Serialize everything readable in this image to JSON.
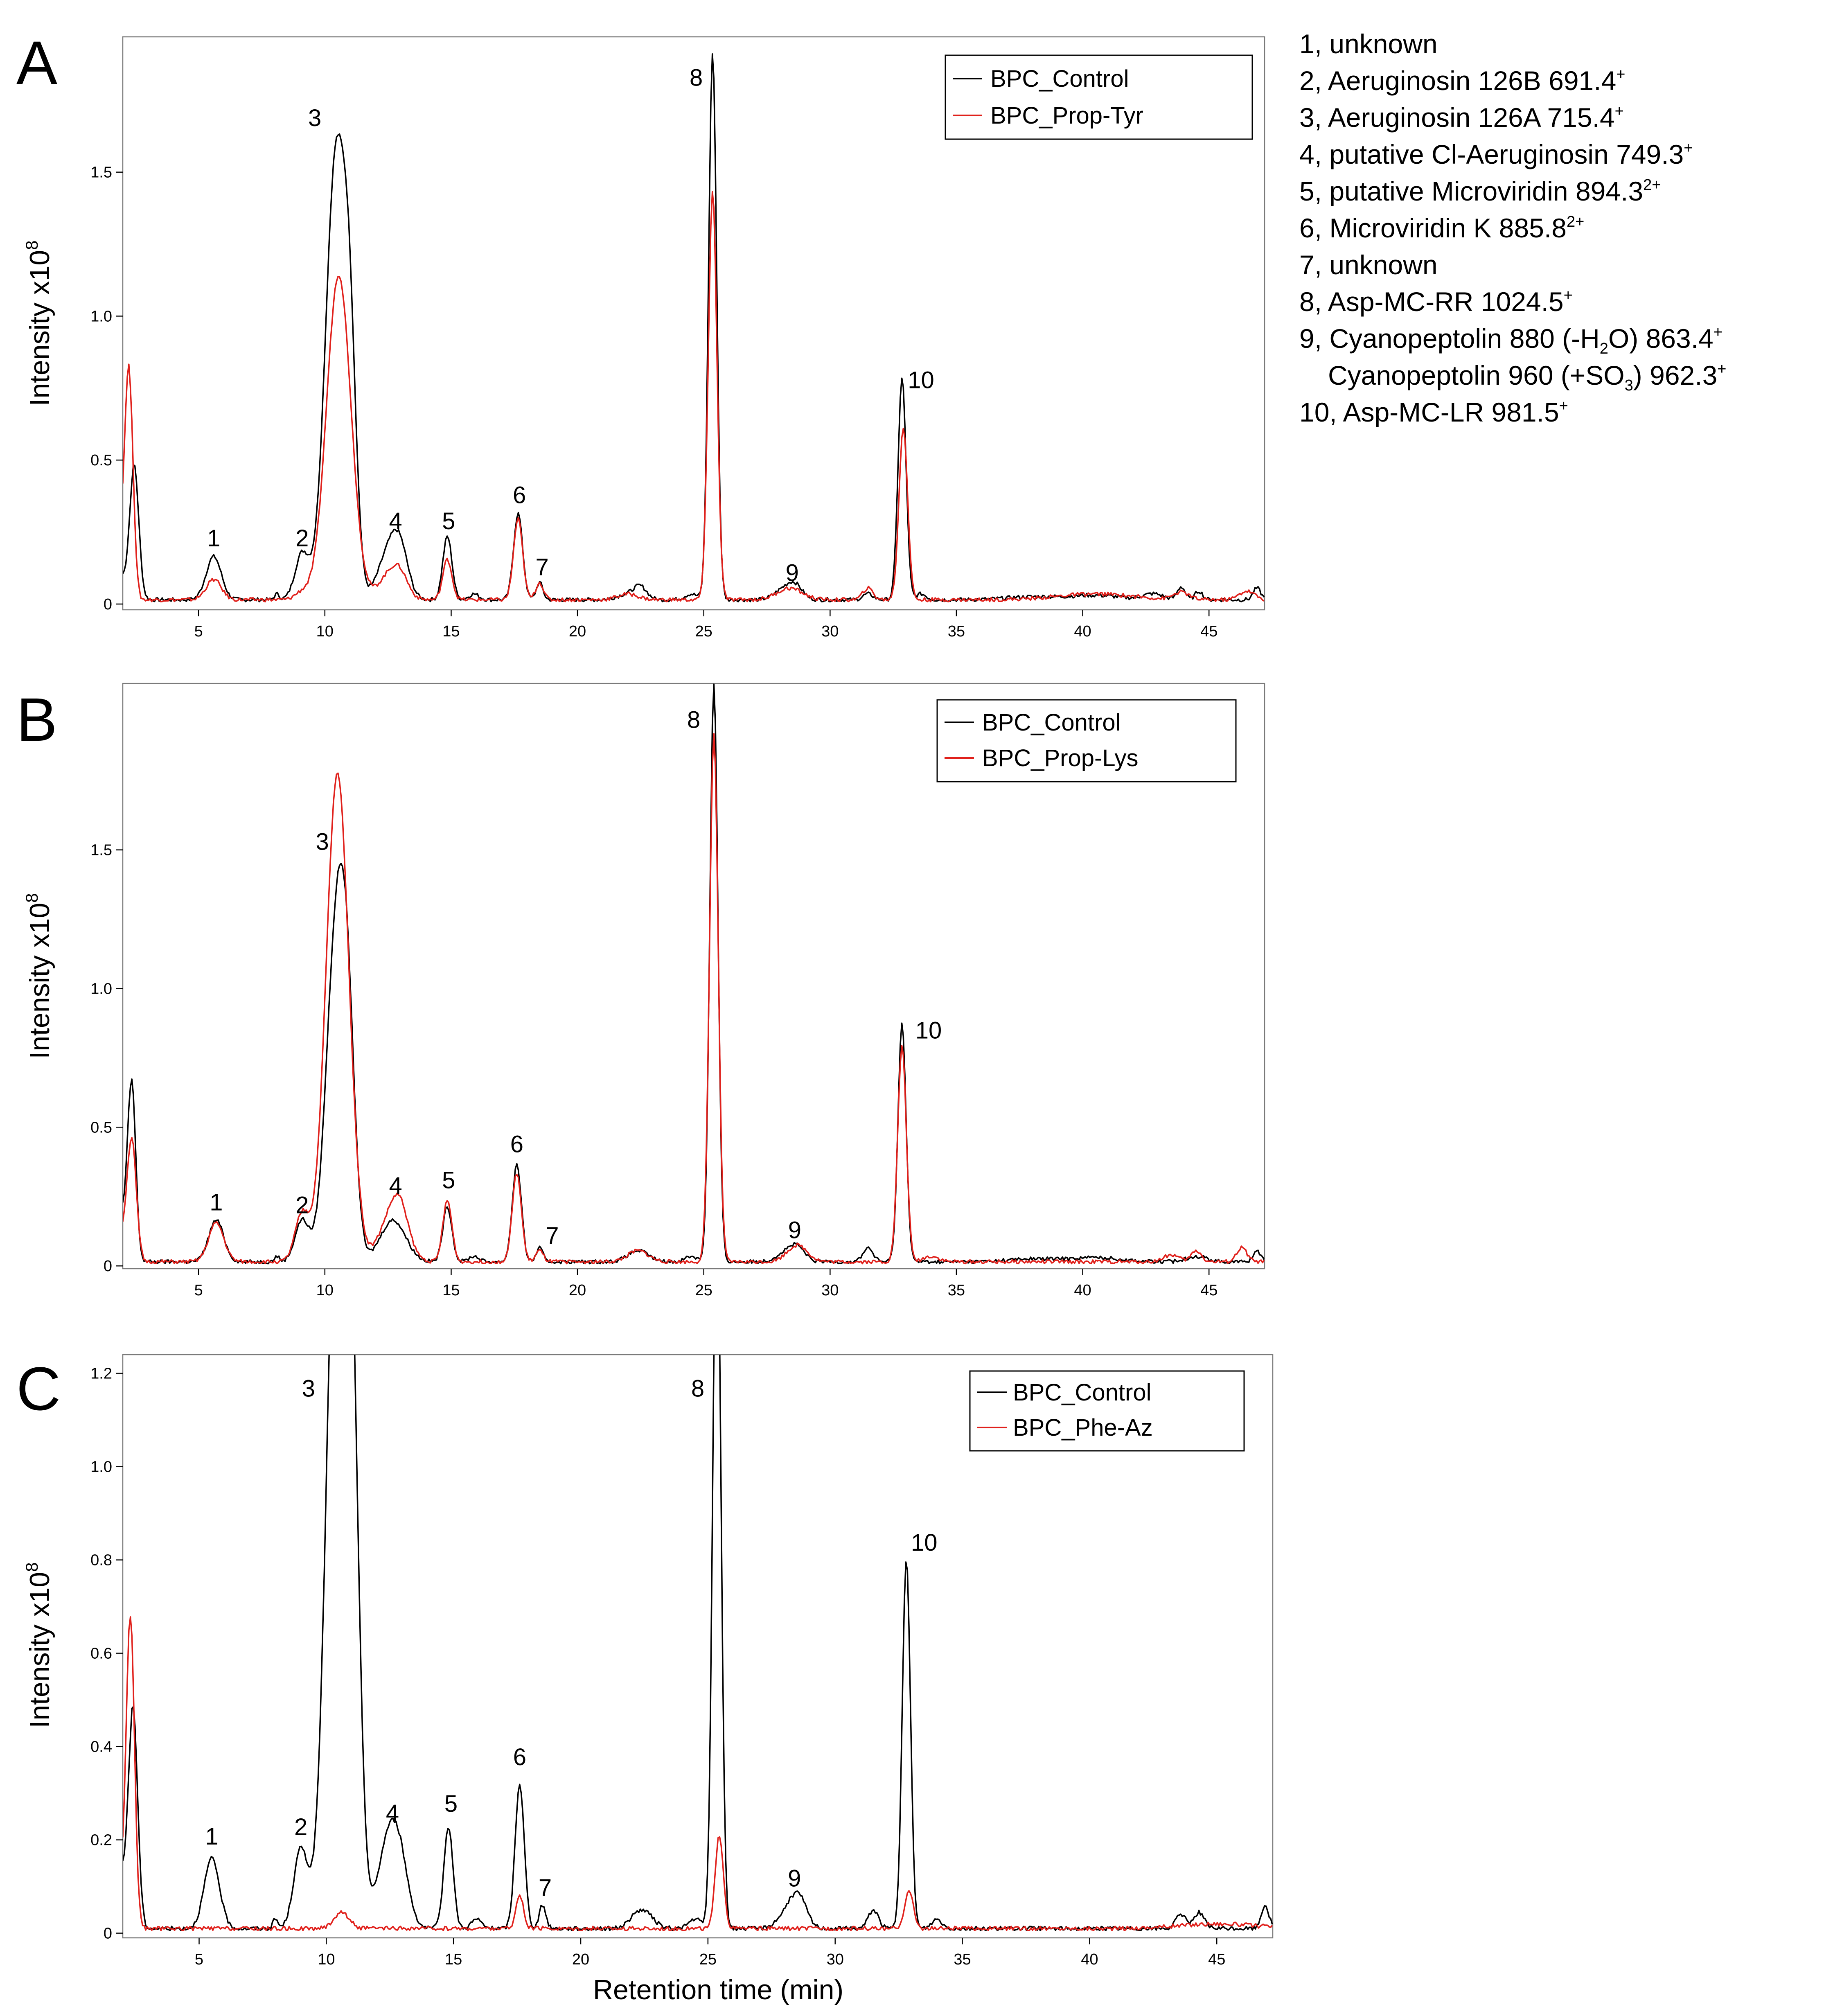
{
  "colors": {
    "control": "#000000",
    "treatment": "#e0201b",
    "frame": "#7a7a7a"
  },
  "x_axis_label": "Retention time (min)",
  "peak_key": [
    {
      "num": "1",
      "sep": ", ",
      "name": "unknown",
      "mass": "",
      "sup": ""
    },
    {
      "num": "2",
      "sep": ", ",
      "name": "Aeruginosin 126B",
      "mass": "691.4",
      "sup": "+"
    },
    {
      "num": "3",
      "sep": ", ",
      "name": "Aeruginosin 126A",
      "mass": "715.4",
      "sup": "+"
    },
    {
      "num": "4",
      "sep": ", ",
      "name": "putative Cl-Aeruginosin",
      "mass": "749.3",
      "sup": "+"
    },
    {
      "num": "5",
      "sep": ", ",
      "name": "putative Microviridin",
      "mass": "894.3",
      "sup": "2+"
    },
    {
      "num": "6",
      "sep": ", ",
      "name": "Microviridin K",
      "mass": "885.8",
      "sup": "2+"
    },
    {
      "num": "7",
      "sep": ", ",
      "name": "unknown",
      "mass": "",
      "sup": ""
    },
    {
      "num": "8",
      "sep": ", ",
      "name": "Asp-MC-RR",
      "mass": "1024.5",
      "sup": "+"
    },
    {
      "num": "9",
      "sep": ", ",
      "name": "Cyanopeptolin 880 (-H",
      "sub": "2",
      "name2": "O)",
      "mass": "863.4",
      "sup": "+"
    },
    {
      "num": "",
      "sep": "",
      "name": "Cyanopeptolin 960 (+SO",
      "sub": "3",
      "name2": ")",
      "mass": "962.3",
      "sup": "+"
    },
    {
      "num": "10",
      "sep": ", ",
      "name": "Asp-MC-LR",
      "mass": "981.5",
      "sup": "+"
    }
  ],
  "chart_data": [
    {
      "panel": "A",
      "type": "line",
      "ylabel": "Intensity x10",
      "ylabel_exp": "8",
      "xlim": [
        2,
        47.2
      ],
      "ylim": [
        -0.02,
        1.97
      ],
      "xticks": [
        5,
        10,
        15,
        20,
        25,
        30,
        35,
        40,
        45
      ],
      "yticks": [
        0,
        0.5,
        1.0,
        1.5
      ],
      "ytick_labels": [
        "0",
        "0.5",
        "1.0",
        "1.5"
      ],
      "legend": [
        "BPC_Control",
        "BPC_Prop-Tyr"
      ],
      "peak_labels": [
        {
          "label": "1",
          "x": 5.6,
          "y": 0.2
        },
        {
          "label": "2",
          "x": 9.1,
          "y": 0.2
        },
        {
          "label": "3",
          "x": 9.6,
          "y": 1.66
        },
        {
          "label": "4",
          "x": 12.8,
          "y": 0.26
        },
        {
          "label": "5",
          "x": 14.9,
          "y": 0.26
        },
        {
          "label": "6",
          "x": 17.7,
          "y": 0.35
        },
        {
          "label": "7",
          "x": 18.6,
          "y": 0.1
        },
        {
          "label": "8",
          "x": 24.7,
          "y": 1.8
        },
        {
          "label": "9",
          "x": 28.5,
          "y": 0.08
        },
        {
          "label": "10",
          "x": 33.6,
          "y": 0.75
        }
      ],
      "series": [
        {
          "name": "BPC_Control",
          "baseline": 0.015,
          "start": 0.07,
          "peaks": [
            [
              2.45,
              0.47,
              0.18
            ],
            [
              5.6,
              0.15,
              0.3
            ],
            [
              8.1,
              0.02,
              0.1
            ],
            [
              9.1,
              0.16,
              0.28
            ],
            [
              10.45,
              1.55,
              0.42
            ],
            [
              11.0,
              0.55,
              0.25
            ],
            [
              12.6,
              0.18,
              0.45
            ],
            [
              13.0,
              0.1,
              0.3
            ],
            [
              14.85,
              0.22,
              0.18
            ],
            [
              15.9,
              0.02,
              0.2
            ],
            [
              17.65,
              0.3,
              0.18
            ],
            [
              18.5,
              0.06,
              0.13
            ],
            [
              22.0,
              0.02,
              0.4
            ],
            [
              22.5,
              0.04,
              0.25
            ],
            [
              24.5,
              0.02,
              0.25
            ],
            [
              25.35,
              1.9,
              0.16
            ],
            [
              28.1,
              0.03,
              0.35
            ],
            [
              28.6,
              0.05,
              0.3
            ],
            [
              31.5,
              0.02,
              0.2
            ],
            [
              32.85,
              0.77,
              0.16
            ],
            [
              33.6,
              0.02,
              0.2
            ],
            [
              38.0,
              0.01,
              1.0
            ],
            [
              40.5,
              0.015,
              1.0
            ],
            [
              42.8,
              0.02,
              0.4
            ],
            [
              43.9,
              0.045,
              0.15
            ],
            [
              44.6,
              0.03,
              0.15
            ],
            [
              46.9,
              0.04,
              0.15
            ]
          ]
        },
        {
          "name": "BPC_Prop-Tyr",
          "baseline": 0.015,
          "start": 0.18,
          "peaks": [
            [
              2.25,
              0.78,
              0.16
            ],
            [
              5.6,
              0.07,
              0.3
            ],
            [
              9.1,
              0.025,
              0.28
            ],
            [
              10.55,
              1.13,
              0.48
            ],
            [
              12.6,
              0.09,
              0.45
            ],
            [
              13.0,
              0.05,
              0.3
            ],
            [
              14.85,
              0.14,
              0.18
            ],
            [
              17.65,
              0.28,
              0.18
            ],
            [
              18.5,
              0.06,
              0.15
            ],
            [
              22.0,
              0.02,
              0.4
            ],
            [
              25.35,
              1.42,
              0.17
            ],
            [
              28.4,
              0.04,
              0.5
            ],
            [
              31.5,
              0.04,
              0.2
            ],
            [
              32.9,
              0.6,
              0.17
            ],
            [
              40.5,
              0.02,
              1.5
            ],
            [
              43.9,
              0.025,
              0.3
            ],
            [
              46.5,
              0.03,
              0.3
            ]
          ]
        }
      ]
    },
    {
      "panel": "B",
      "type": "line",
      "ylabel": "Intensity x10",
      "ylabel_exp": "8",
      "xlim": [
        2,
        47.2
      ],
      "ylim": [
        -0.01,
        2.1
      ],
      "xticks": [
        5,
        10,
        15,
        20,
        25,
        30,
        35,
        40,
        45
      ],
      "yticks": [
        0,
        0.5,
        1.0,
        1.5
      ],
      "ytick_labels": [
        "0",
        "0.5",
        "1.0",
        "1.5"
      ],
      "legend": [
        "BPC_Control",
        "BPC_Prop-Lys"
      ],
      "peak_labels": [
        {
          "label": "1",
          "x": 5.7,
          "y": 0.2
        },
        {
          "label": "2",
          "x": 9.1,
          "y": 0.19
        },
        {
          "label": "3",
          "x": 9.9,
          "y": 1.5
        },
        {
          "label": "4",
          "x": 12.8,
          "y": 0.26
        },
        {
          "label": "5",
          "x": 14.9,
          "y": 0.28
        },
        {
          "label": "6",
          "x": 17.6,
          "y": 0.41
        },
        {
          "label": "7",
          "x": 19.0,
          "y": 0.08
        },
        {
          "label": "8",
          "x": 24.6,
          "y": 1.94
        },
        {
          "label": "9",
          "x": 28.6,
          "y": 0.1
        },
        {
          "label": "10",
          "x": 33.9,
          "y": 0.82
        }
      ],
      "series": [
        {
          "name": "BPC_Control",
          "baseline": 0.015,
          "start": 0.15,
          "peaks": [
            [
              2.35,
              0.66,
              0.16
            ],
            [
              5.7,
              0.15,
              0.3
            ],
            [
              8.1,
              0.02,
              0.1
            ],
            [
              9.1,
              0.15,
              0.28
            ],
            [
              10.45,
              1.15,
              0.4
            ],
            [
              10.9,
              0.6,
              0.3
            ],
            [
              12.7,
              0.15,
              0.5
            ],
            [
              14.85,
              0.2,
              0.18
            ],
            [
              15.9,
              0.02,
              0.2
            ],
            [
              17.6,
              0.35,
              0.18
            ],
            [
              18.5,
              0.05,
              0.13
            ],
            [
              22.4,
              0.04,
              0.4
            ],
            [
              24.5,
              0.02,
              0.25
            ],
            [
              25.4,
              2.08,
              0.16
            ],
            [
              28.2,
              0.03,
              0.35
            ],
            [
              28.7,
              0.05,
              0.3
            ],
            [
              31.5,
              0.05,
              0.2
            ],
            [
              32.85,
              0.86,
              0.16
            ],
            [
              38.0,
              0.01,
              1.0
            ],
            [
              40.5,
              0.015,
              1.0
            ],
            [
              44.5,
              0.02,
              0.4
            ],
            [
              46.9,
              0.04,
              0.15
            ]
          ]
        },
        {
          "name": "BPC_Prop-Lys",
          "baseline": 0.015,
          "start": 0.08,
          "peaks": [
            [
              2.35,
              0.45,
              0.18
            ],
            [
              5.7,
              0.14,
              0.3
            ],
            [
              9.1,
              0.17,
              0.28
            ],
            [
              10.5,
              1.76,
              0.45
            ],
            [
              12.7,
              0.18,
              0.5
            ],
            [
              13.0,
              0.08,
              0.3
            ],
            [
              14.85,
              0.22,
              0.18
            ],
            [
              17.6,
              0.32,
              0.18
            ],
            [
              18.5,
              0.04,
              0.15
            ],
            [
              22.4,
              0.04,
              0.4
            ],
            [
              25.4,
              1.9,
              0.17
            ],
            [
              28.7,
              0.06,
              0.4
            ],
            [
              32.85,
              0.78,
              0.17
            ],
            [
              34.0,
              0.02,
              0.3
            ],
            [
              43.5,
              0.025,
              0.3
            ],
            [
              44.5,
              0.04,
              0.2
            ],
            [
              46.3,
              0.05,
              0.2
            ]
          ]
        }
      ]
    },
    {
      "panel": "C",
      "type": "line",
      "ylabel": "Intensity x10",
      "ylabel_exp": "8",
      "xlim": [
        2,
        47.2
      ],
      "ylim": [
        -0.01,
        1.24
      ],
      "xticks": [
        5,
        10,
        15,
        20,
        25,
        30,
        35,
        40,
        45
      ],
      "yticks": [
        0,
        0.2,
        0.4,
        0.6,
        0.8,
        1.0,
        1.2
      ],
      "ytick_labels": [
        "0",
        "0.2",
        "0.4",
        "0.6",
        "0.8",
        "1.0",
        "1.2"
      ],
      "legend": [
        "BPC_Control",
        "BPC_Phe-Az"
      ],
      "peak_labels": [
        {
          "label": "1",
          "x": 5.5,
          "y": 0.19
        },
        {
          "label": "2",
          "x": 9.0,
          "y": 0.21
        },
        {
          "label": "3",
          "x": 9.3,
          "y": 1.15
        },
        {
          "label": "4",
          "x": 12.6,
          "y": 0.24
        },
        {
          "label": "5",
          "x": 14.9,
          "y": 0.26
        },
        {
          "label": "6",
          "x": 17.6,
          "y": 0.36
        },
        {
          "label": "7",
          "x": 18.6,
          "y": 0.08
        },
        {
          "label": "8",
          "x": 24.6,
          "y": 1.15
        },
        {
          "label": "9",
          "x": 28.4,
          "y": 0.1
        },
        {
          "label": "10",
          "x": 33.5,
          "y": 0.82
        }
      ],
      "series": [
        {
          "name": "BPC_Control",
          "baseline": 0.01,
          "start": 0.1,
          "peaks": [
            [
              2.4,
              0.48,
              0.18
            ],
            [
              5.5,
              0.15,
              0.3
            ],
            [
              8.0,
              0.02,
              0.1
            ],
            [
              9.0,
              0.17,
              0.28
            ],
            [
              10.45,
              1.7,
              0.42
            ],
            [
              11.0,
              0.8,
              0.3
            ],
            [
              12.4,
              0.17,
              0.4
            ],
            [
              12.9,
              0.12,
              0.35
            ],
            [
              14.8,
              0.22,
              0.18
            ],
            [
              15.9,
              0.02,
              0.2
            ],
            [
              17.6,
              0.31,
              0.18
            ],
            [
              18.5,
              0.05,
              0.13
            ],
            [
              22.4,
              0.04,
              0.4
            ],
            [
              24.5,
              0.02,
              0.25
            ],
            [
              25.35,
              1.6,
              0.16
            ],
            [
              28.2,
              0.04,
              0.4
            ],
            [
              28.6,
              0.05,
              0.3
            ],
            [
              31.5,
              0.04,
              0.2
            ],
            [
              32.8,
              0.79,
              0.16
            ],
            [
              34.0,
              0.02,
              0.2
            ],
            [
              43.6,
              0.03,
              0.2
            ],
            [
              44.3,
              0.035,
              0.2
            ],
            [
              46.9,
              0.05,
              0.15
            ]
          ]
        },
        {
          "name": "BPC_Phe-Az",
          "baseline": 0.01,
          "start": 0.08,
          "peaks": [
            [
              2.3,
              0.67,
              0.16
            ],
            [
              10.6,
              0.035,
              0.3
            ],
            [
              17.6,
              0.07,
              0.15
            ],
            [
              25.45,
              0.2,
              0.16
            ],
            [
              32.9,
              0.08,
              0.17
            ],
            [
              45.0,
              0.01,
              1.5
            ]
          ]
        }
      ]
    }
  ]
}
